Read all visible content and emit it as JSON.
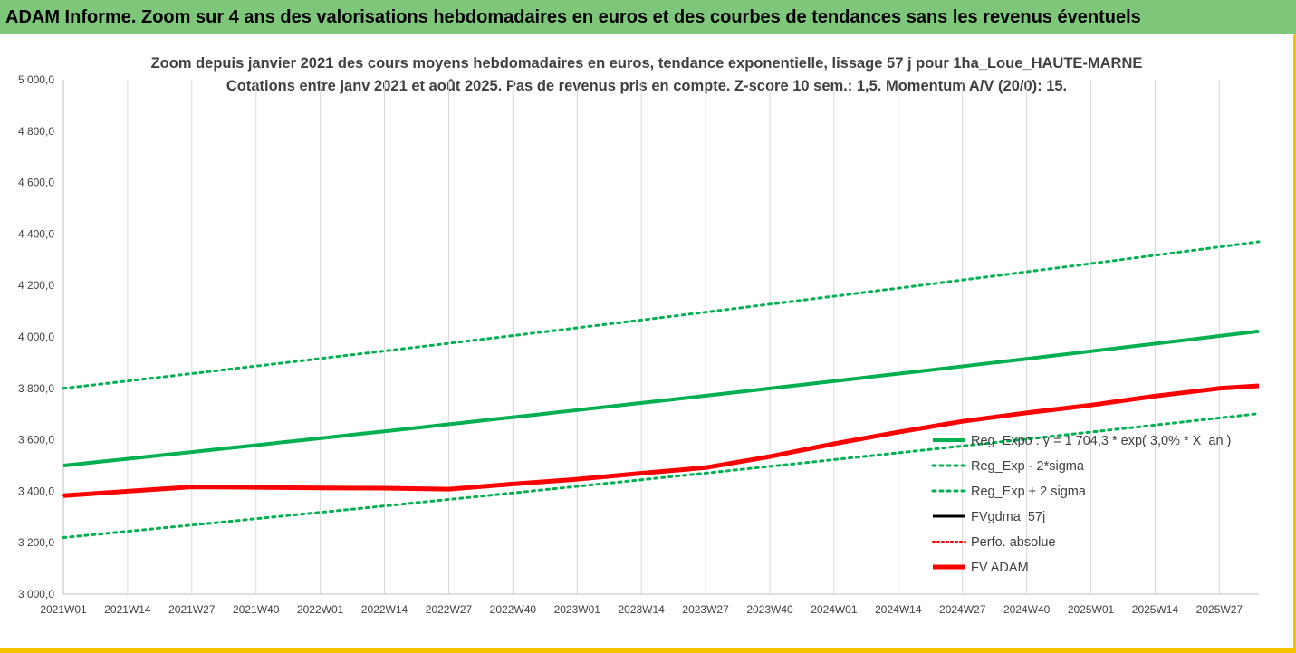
{
  "banner": {
    "title": "ADAM Informe. Zoom sur 4 ans des valorisations hebdomadaires en euros et des courbes de tendances sans les revenus éventuels"
  },
  "chart_data": {
    "type": "line",
    "title": "Zoom depuis janvier 2021 des cours moyens hebdomadaires en euros, tendance exponentielle, lissage 57 j pour 1ha_Loue_HAUTE-MARNE",
    "subtitle": "Cotations entre janv 2021 et août 2025. Pas de revenus pris en compte. Z-score 10 sem.: 1,5. Momentum A/V (20/0): 15.",
    "xlabel": "",
    "ylabel": "",
    "ylim": [
      3000,
      5000
    ],
    "yticks": [
      3000,
      3200,
      3400,
      3600,
      3800,
      4000,
      4200,
      4400,
      4600,
      4800,
      5000
    ],
    "ytick_labels": [
      "3 000,0",
      "3 200,0",
      "3 400,0",
      "3 600,0",
      "3 800,0",
      "4 000,0",
      "4 200,0",
      "4 400,0",
      "4 600,0",
      "4 800,0",
      "5 000,0"
    ],
    "xtick_labels": [
      "2021W01",
      "2021W14",
      "2021W27",
      "2021W40",
      "2022W01",
      "2022W14",
      "2022W27",
      "2022W40",
      "2023W01",
      "2023W14",
      "2023W27",
      "2023W40",
      "2024W01",
      "2024W14",
      "2024W27",
      "2024W40",
      "2025W01",
      "2025W14",
      "2025W27"
    ],
    "xtick_positions": [
      0,
      13,
      26,
      39,
      52,
      65,
      78,
      91,
      104,
      117,
      130,
      143,
      156,
      169,
      182,
      195,
      208,
      221,
      234
    ],
    "x_range": [
      0,
      242
    ],
    "grid": "vertical",
    "legend_position": "right",
    "series": [
      {
        "name": "Reg_Expo : y = 1 704,3 * exp( 3,0% *  X_an )",
        "color": "#00b050",
        "style": "solid",
        "width": 4,
        "x": [
          0,
          242
        ],
        "y": [
          3500,
          4022
        ],
        "curve": "exponential"
      },
      {
        "name": "Reg_Exp - 2*sigma",
        "color": "#00b050",
        "style": "dotted",
        "width": 3,
        "x": [
          0,
          242
        ],
        "y": [
          3220,
          3702
        ],
        "curve": "exponential"
      },
      {
        "name": "Reg_Exp + 2 sigma",
        "color": "#00b050",
        "style": "dotted",
        "width": 3,
        "x": [
          0,
          242
        ],
        "y": [
          3800,
          4370
        ],
        "curve": "exponential"
      },
      {
        "name": "FVgdma_57j",
        "color": "#000000",
        "style": "solid",
        "width": 3,
        "x": [
          0,
          13,
          26,
          39,
          52,
          65,
          78,
          91,
          104,
          117,
          130,
          143,
          156,
          169,
          182,
          195,
          208,
          221,
          234,
          242
        ],
        "y": [
          3383,
          3400,
          3417,
          3415,
          3413,
          3412,
          3408,
          3428,
          3447,
          3470,
          3492,
          3535,
          3585,
          3630,
          3672,
          3705,
          3735,
          3770,
          3800,
          3810
        ]
      },
      {
        "name": "Perfo. absolue",
        "color": "#ff0000",
        "style": "dotted",
        "width": 2,
        "x": [
          0,
          13,
          26,
          39,
          52,
          65,
          78,
          91,
          104,
          117,
          130,
          143,
          156,
          169,
          182,
          195,
          208,
          221,
          234,
          242
        ],
        "y": [
          3383,
          3400,
          3417,
          3415,
          3413,
          3412,
          3408,
          3428,
          3447,
          3470,
          3492,
          3535,
          3585,
          3630,
          3672,
          3705,
          3735,
          3770,
          3800,
          3810
        ]
      },
      {
        "name": "FV ADAM",
        "color": "#ff0000",
        "style": "solid",
        "width": 5,
        "x": [
          0,
          13,
          26,
          39,
          52,
          65,
          78,
          91,
          104,
          117,
          130,
          143,
          156,
          169,
          182,
          195,
          208,
          221,
          234,
          242
        ],
        "y": [
          3383,
          3400,
          3417,
          3415,
          3413,
          3412,
          3408,
          3428,
          3447,
          3470,
          3492,
          3535,
          3585,
          3630,
          3672,
          3705,
          3735,
          3770,
          3800,
          3810
        ]
      }
    ]
  }
}
